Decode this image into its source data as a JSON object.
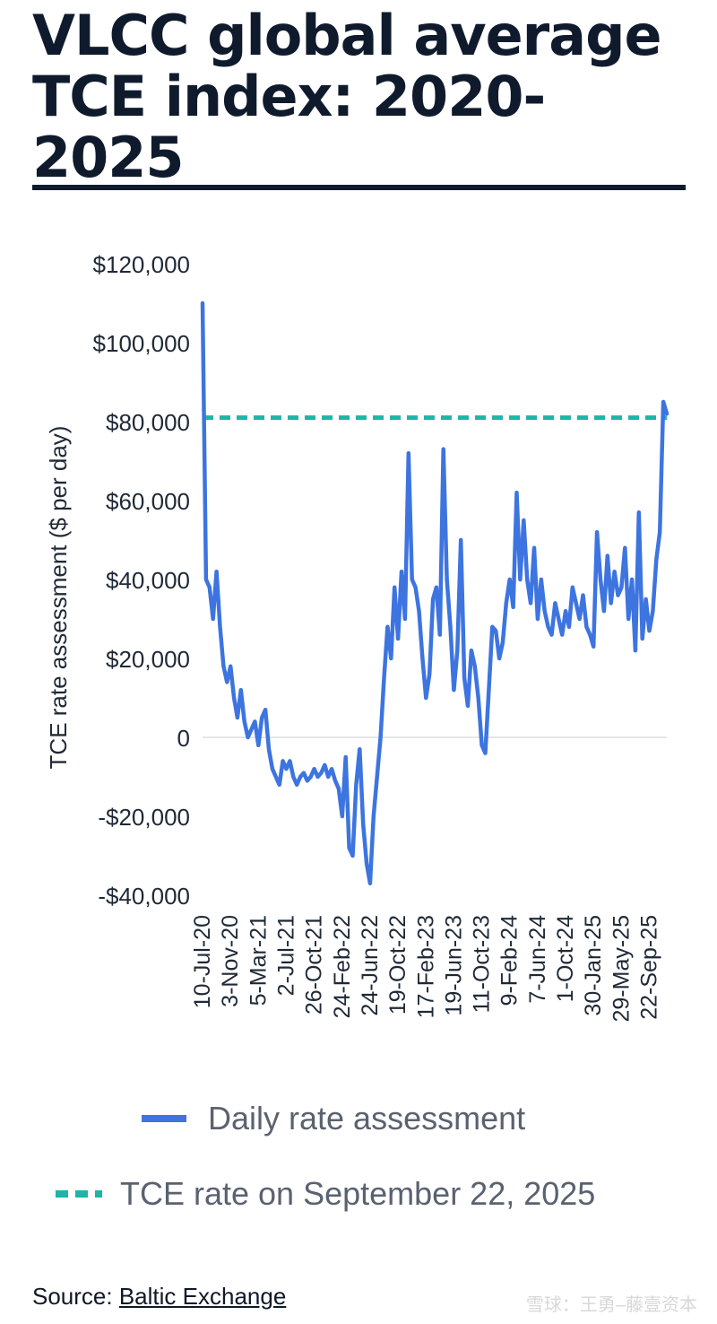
{
  "title": "VLCC global average TCE index: 2020-2025",
  "source": {
    "label": "Source:",
    "link_text": "Baltic Exchange"
  },
  "watermark": "雪球：王勇–藤壹资本",
  "colors": {
    "series": "#3d74e0",
    "reference": "#1cb5a6",
    "text": "#111827",
    "axis_text": "#1f2937"
  },
  "legend": [
    {
      "label": "Daily rate assessment",
      "style": "solid"
    },
    {
      "label": "TCE rate on September 22, 2025",
      "style": "dashed"
    }
  ],
  "chart_data": {
    "type": "line",
    "ylabel": "TCE rate assessment ($ per day)",
    "xlabel": "",
    "ylim": [
      -40000,
      120000
    ],
    "yticks": [
      120000,
      100000,
      80000,
      60000,
      40000,
      20000,
      0,
      -20000,
      -40000
    ],
    "ytick_labels": [
      "$120,000",
      "$100,000",
      "$80,000",
      "$60,000",
      "$40,000",
      "$20,000",
      "0",
      "-$20,000",
      "-$40,000"
    ],
    "xtick_labels": [
      "10-Jul-20",
      "3-Nov-20",
      "5-Mar-21",
      "2-Jul-21",
      "26-Oct-21",
      "24-Feb-22",
      "24-Jun-22",
      "19-Oct-22",
      "17-Feb-23",
      "19-Jun-23",
      "11-Oct-23",
      "9-Feb-24",
      "7-Jun-24",
      "1-Oct-24",
      "30-Jan-25",
      "29-May-25",
      "22-Sep-25"
    ],
    "xtick_index": [
      0,
      8,
      16,
      24,
      32,
      40,
      48,
      56,
      64,
      72,
      80,
      88,
      96,
      104,
      112,
      120,
      128
    ],
    "grid": false,
    "reference_line": {
      "name": "TCE rate on September 22, 2025",
      "value": 81000
    },
    "series": [
      {
        "name": "Daily rate assessment",
        "values": [
          110000,
          40000,
          38000,
          30000,
          42000,
          28000,
          18000,
          14000,
          18000,
          10000,
          5000,
          12000,
          4000,
          0,
          2000,
          4000,
          -2000,
          5000,
          7000,
          -3000,
          -8000,
          -10000,
          -12000,
          -6000,
          -8000,
          -6000,
          -10000,
          -12000,
          -10000,
          -9000,
          -11000,
          -10000,
          -8000,
          -10000,
          -9000,
          -7000,
          -10000,
          -8000,
          -11000,
          -13000,
          -20000,
          -5000,
          -28000,
          -30000,
          -12000,
          -3000,
          -22000,
          -32000,
          -37000,
          -20000,
          -10000,
          0,
          15000,
          28000,
          20000,
          38000,
          25000,
          42000,
          30000,
          72000,
          40000,
          38000,
          32000,
          20000,
          10000,
          16000,
          35000,
          38000,
          26000,
          73000,
          40000,
          28000,
          12000,
          22000,
          50000,
          15000,
          8000,
          22000,
          18000,
          10000,
          -2000,
          -4000,
          12000,
          28000,
          27000,
          20000,
          24000,
          34000,
          40000,
          33000,
          62000,
          40000,
          55000,
          40000,
          34000,
          48000,
          30000,
          40000,
          32000,
          28000,
          26000,
          34000,
          30000,
          26000,
          32000,
          28000,
          38000,
          34000,
          30000,
          36000,
          28000,
          26000,
          23000,
          52000,
          40000,
          32000,
          46000,
          34000,
          42000,
          36000,
          38000,
          48000,
          30000,
          40000,
          22000,
          57000,
          25000,
          35000,
          27000,
          32000,
          45000,
          52000,
          85000,
          82000
        ]
      }
    ]
  }
}
